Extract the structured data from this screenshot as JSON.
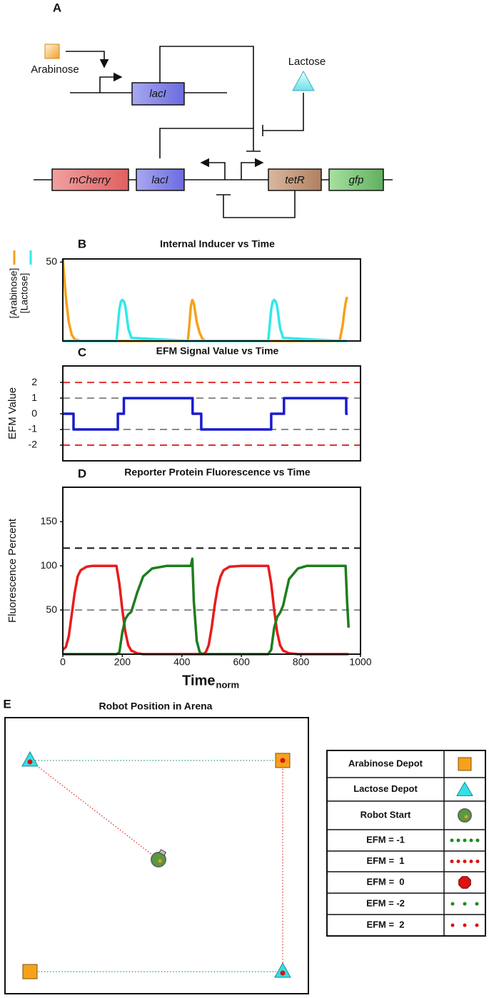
{
  "panel_labels": [
    "A",
    "B",
    "C",
    "D",
    "E"
  ],
  "panel_a": {
    "arabinose": "Arabinose",
    "lactose": "Lactose",
    "genes": [
      "lacI",
      "mCherry",
      "lacI",
      "tetR",
      "gfp"
    ]
  },
  "chart_data": [
    {
      "type": "line",
      "title": "Internal Inducer vs Time",
      "x": [
        0,
        5,
        10,
        20,
        30,
        40,
        60,
        180,
        185,
        190,
        195,
        200,
        205,
        210,
        215,
        220,
        230,
        420,
        425,
        430,
        435,
        440,
        445,
        450,
        460,
        470,
        480,
        690,
        695,
        700,
        705,
        710,
        715,
        720,
        725,
        730,
        740,
        930,
        940,
        945,
        950,
        955
      ],
      "series": [
        {
          "name": "[Arabinose]",
          "color": "#f5a21b",
          "values": [
            52,
            40,
            28,
            12,
            4,
            1,
            0,
            0,
            0,
            0,
            0,
            0,
            0,
            0,
            0,
            0,
            0,
            0,
            10,
            22,
            26,
            24,
            18,
            12,
            5,
            1,
            0,
            0,
            0,
            0,
            0,
            0,
            0,
            0,
            0,
            0,
            0,
            0,
            10,
            18,
            24,
            28
          ]
        },
        {
          "name": "[Lactose]",
          "color": "#33e8e8",
          "values": [
            0,
            0,
            0,
            0,
            0,
            0,
            0,
            0,
            10,
            20,
            25,
            26,
            25,
            22,
            15,
            8,
            2,
            0,
            0,
            0,
            0,
            0,
            0,
            0,
            0,
            0,
            0,
            0,
            10,
            20,
            25,
            26,
            25,
            22,
            15,
            8,
            2,
            0,
            0,
            0,
            0,
            0
          ]
        }
      ],
      "xlim": [
        0,
        1000
      ],
      "ylim": [
        0,
        52
      ],
      "yticks": [
        50
      ]
    },
    {
      "type": "line",
      "title": "EFM Signal Value vs Time",
      "y_label": "EFM Value",
      "x": [
        0,
        36,
        36,
        185,
        185,
        205,
        205,
        436,
        436,
        465,
        465,
        700,
        700,
        743,
        743,
        952,
        952,
        957
      ],
      "series": [
        {
          "color": "#1a1ad0",
          "values": [
            0,
            0,
            -1,
            -1,
            0,
            0,
            1,
            1,
            0,
            0,
            -1,
            -1,
            0,
            0,
            1,
            1,
            0,
            0
          ]
        }
      ],
      "reference_lines": [
        {
          "value": 2,
          "color": "#e03030"
        },
        {
          "value": 1,
          "color": "#8a8a8a"
        },
        {
          "value": -1,
          "color": "#8a8a8a"
        },
        {
          "value": -2,
          "color": "#e03030"
        }
      ],
      "xlim": [
        0,
        1000
      ],
      "ylim": [
        -3,
        3.05
      ],
      "yticks": [
        -2,
        -1,
        0,
        1,
        2
      ]
    },
    {
      "type": "line",
      "title": "Reporter Protein Fluorescence vs Time",
      "y_label": "Fluorescence Percent",
      "x_label": "Time",
      "x_label_subscript": "norm",
      "x": [
        0,
        10,
        20,
        30,
        40,
        50,
        60,
        80,
        100,
        180,
        190,
        200,
        210,
        220,
        230,
        250,
        270,
        300,
        350,
        430,
        435,
        440,
        450,
        460,
        470,
        480,
        490,
        500,
        510,
        520,
        530,
        540,
        560,
        600,
        690,
        700,
        710,
        720,
        730,
        740,
        760,
        790,
        820,
        900,
        950,
        955,
        960
      ],
      "series": [
        {
          "color": "#e81c1c",
          "values": [
            5,
            8,
            20,
            45,
            70,
            88,
            95,
            99,
            100,
            100,
            80,
            50,
            25,
            10,
            4,
            1,
            0,
            0,
            0,
            0,
            0,
            0,
            0,
            0,
            0,
            2,
            10,
            30,
            55,
            75,
            88,
            95,
            99,
            100,
            100,
            80,
            50,
            25,
            10,
            4,
            1,
            0,
            0,
            0,
            0,
            0,
            0
          ]
        },
        {
          "color": "#1e7d1e",
          "values": [
            0,
            0,
            0,
            0,
            0,
            0,
            0,
            0,
            0,
            0,
            2,
            25,
            40,
            45,
            48,
            70,
            88,
            97,
            100,
            100,
            108,
            60,
            15,
            2,
            0,
            0,
            0,
            0,
            0,
            0,
            0,
            0,
            0,
            0,
            0,
            5,
            30,
            42,
            47,
            55,
            85,
            97,
            100,
            100,
            100,
            60,
            30
          ]
        }
      ],
      "reference_lines": [
        {
          "value": 120,
          "color": "#111111"
        },
        {
          "value": 50,
          "color": "#8a8a8a"
        }
      ],
      "xlim": [
        0,
        1000
      ],
      "ylim": [
        0,
        189
      ],
      "xticks": [
        0,
        200,
        400,
        600,
        800,
        1000
      ],
      "yticks": [
        50,
        100,
        150
      ]
    }
  ],
  "panel_e": {
    "title": "Robot Position in Arena",
    "legend": [
      "Arabinose Depot",
      "Lactose Depot",
      "Robot Start",
      "EFM = -1",
      "EFM =  1",
      "EFM =  0",
      "EFM = -2",
      "EFM =  2"
    ]
  }
}
